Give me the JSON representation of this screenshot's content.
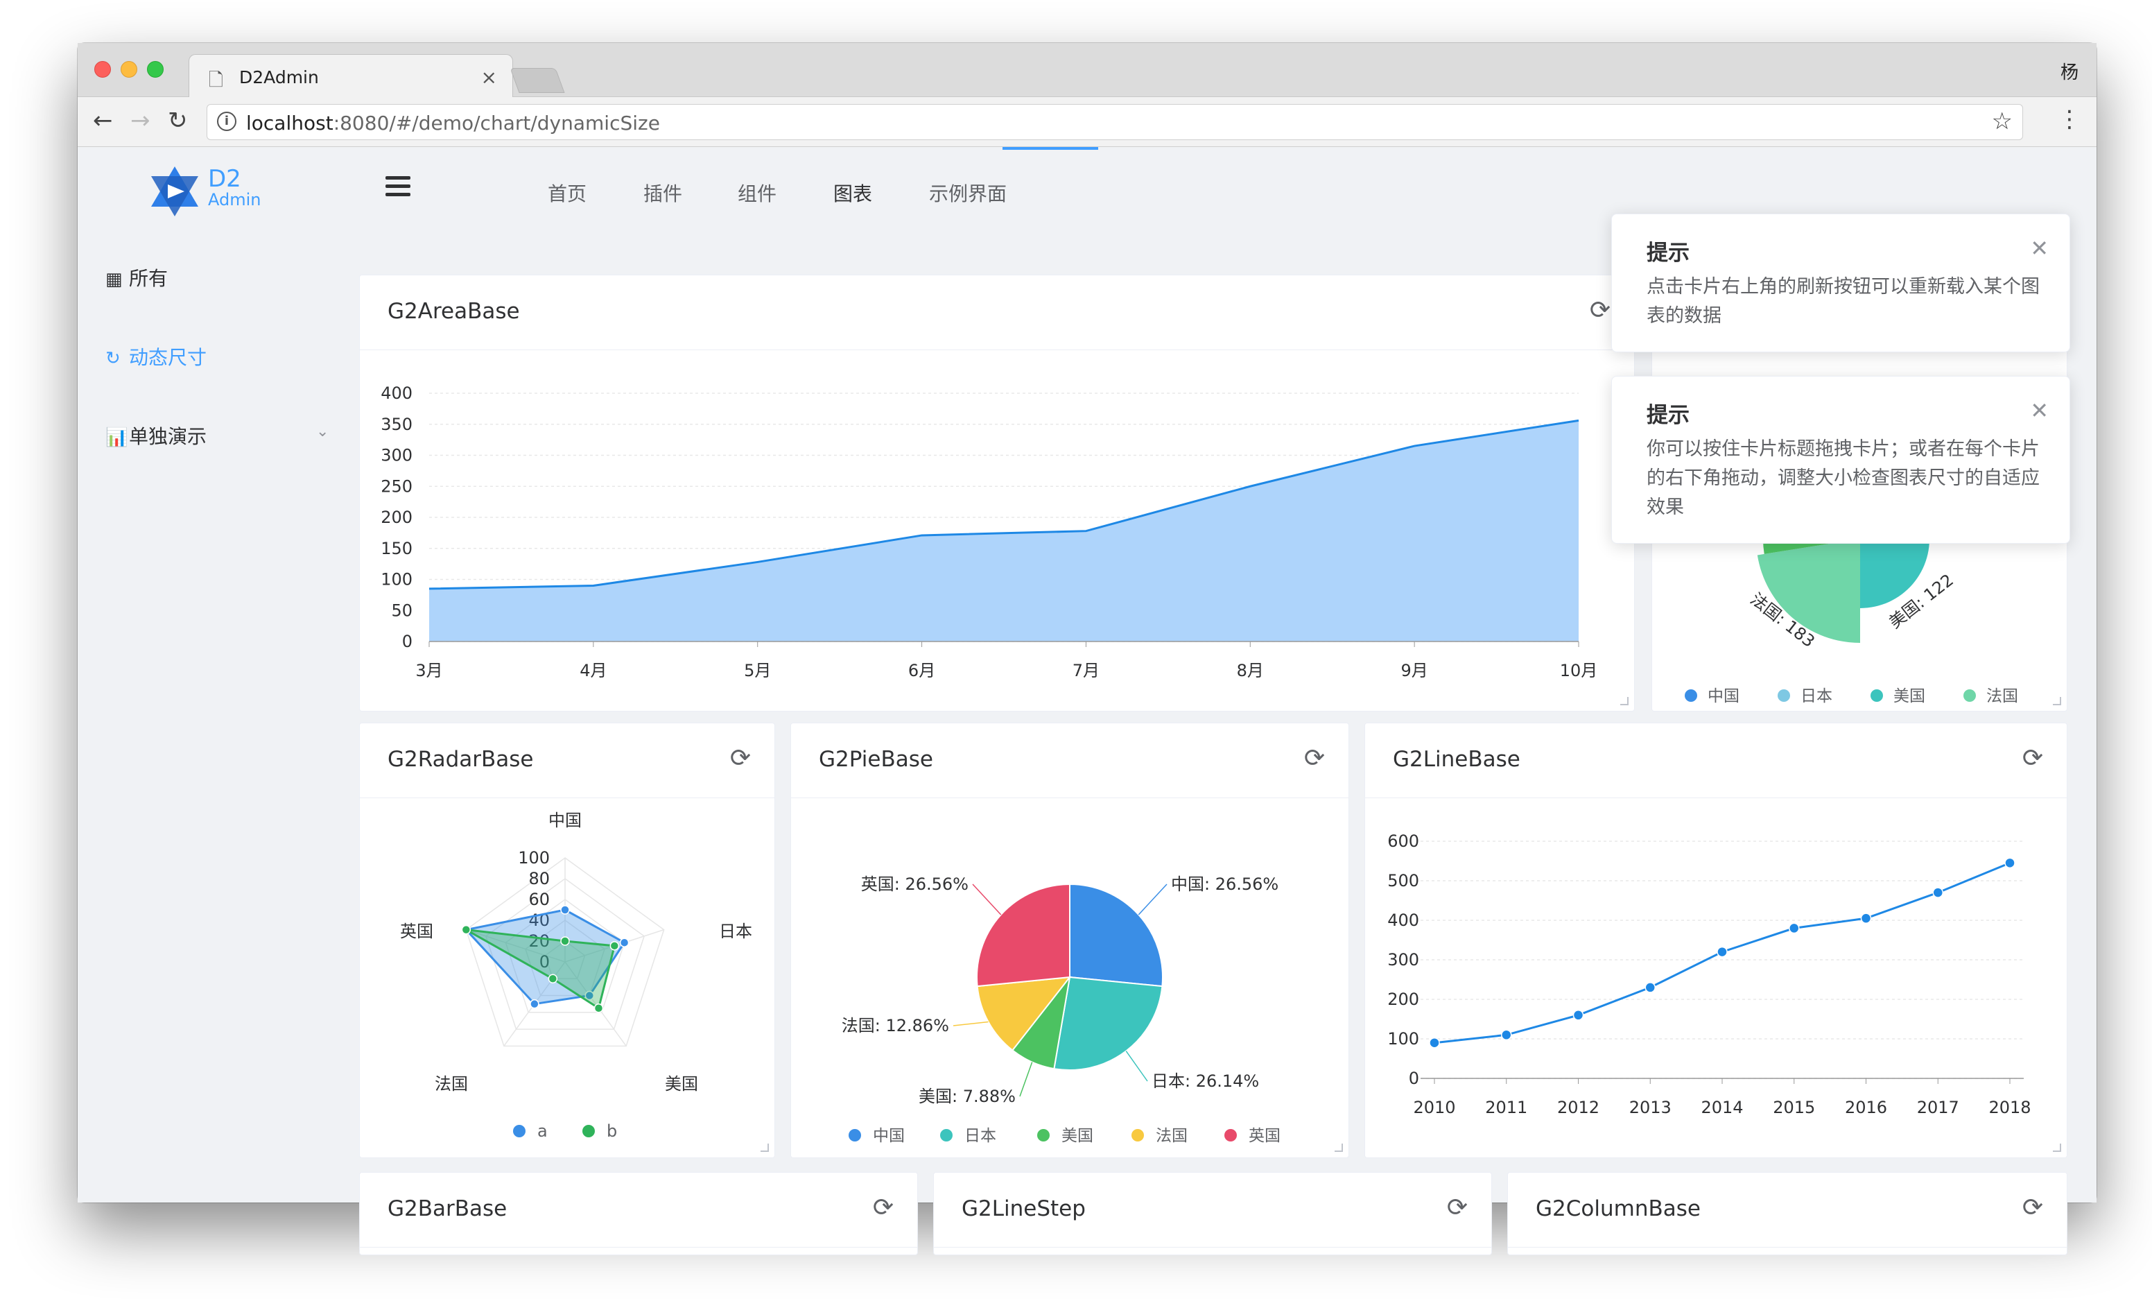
{
  "browser": {
    "tab_title": "D2Admin",
    "profile": "杨",
    "url_host": "localhost",
    "url_path": ":8080/#/demo/chart/dynamicSize"
  },
  "app": {
    "logo_title": "D2",
    "logo_subtitle": "Admin"
  },
  "sidebar": {
    "items": [
      {
        "label": "所有",
        "icon": "grid-icon"
      },
      {
        "label": "动态尺寸",
        "icon": "refresh-icon"
      },
      {
        "label": "单独演示",
        "icon": "bar-chart-icon"
      }
    ]
  },
  "header": {
    "nav": [
      "首页",
      "插件",
      "组件",
      "图表",
      "示例界面"
    ],
    "active": "图表"
  },
  "cards": {
    "area": {
      "title": "G2AreaBase"
    },
    "pie_top": {
      "title": ""
    },
    "radar": {
      "title": "G2RadarBase"
    },
    "pie": {
      "title": "G2PieBase"
    },
    "line": {
      "title": "G2LineBase"
    },
    "bar": {
      "title": "G2BarBase"
    },
    "linestep": {
      "title": "G2LineStep"
    },
    "column": {
      "title": "G2ColumnBase"
    }
  },
  "notifications": [
    {
      "title": "提示",
      "message": "点击卡片右上角的刷新按钮可以重新载入某个图表的数据"
    },
    {
      "title": "提示",
      "message": "你可以按住卡片标题拖拽卡片；或者在每个卡片的右下角拖动，调整大小检查图表尺寸的自适应效果"
    }
  ],
  "colors": {
    "accent": "#409eff",
    "area_fill": "#aed4fb",
    "line": "#1e88e5"
  },
  "chart_data": [
    {
      "type": "area",
      "categories": [
        "3月",
        "4月",
        "5月",
        "6月",
        "7月",
        "8月",
        "9月",
        "10月"
      ],
      "values": [
        85,
        90,
        128,
        171,
        178,
        250,
        315,
        356
      ],
      "yticks": [
        0,
        50,
        100,
        150,
        200,
        250,
        300,
        350,
        400
      ],
      "ylim": [
        0,
        400
      ]
    },
    {
      "type": "pie",
      "partial": true,
      "legend": [
        "中国",
        "日本",
        "美国",
        "法国"
      ],
      "labels": [
        "美国: 122",
        "法国: 183"
      ],
      "colors": [
        "#3a8ee6",
        "#7ec8e3",
        "#3cc4bd",
        "#6fd6a8"
      ]
    },
    {
      "type": "radar",
      "axes": [
        "中国",
        "日本",
        "美国",
        "法国",
        "英国"
      ],
      "ticks": [
        0,
        20,
        40,
        60,
        80,
        100
      ],
      "series": [
        {
          "name": "a",
          "values": [
            50,
            60,
            40,
            50,
            100
          ]
        },
        {
          "name": "b",
          "values": [
            20,
            50,
            55,
            20,
            100
          ]
        }
      ],
      "colors": [
        "#3a8ee6",
        "#2fb35a"
      ]
    },
    {
      "type": "pie",
      "slices": [
        {
          "name": "中国",
          "label": "中国: 26.56%",
          "value": 26.56,
          "color": "#3a8ee6"
        },
        {
          "name": "日本",
          "label": "日本: 26.14%",
          "value": 26.14,
          "color": "#3cc4bd"
        },
        {
          "name": "美国",
          "label": "美国: 7.88%",
          "value": 7.88,
          "color": "#4cc261"
        },
        {
          "name": "法国",
          "label": "法国: 12.86%",
          "value": 12.86,
          "color": "#f8c93f"
        },
        {
          "name": "英国",
          "label": "英国: 26.56%",
          "value": 26.56,
          "color": "#e84a6a"
        }
      ]
    },
    {
      "type": "line",
      "categories": [
        "2010",
        "2011",
        "2012",
        "2013",
        "2014",
        "2015",
        "2016",
        "2017",
        "2018"
      ],
      "values": [
        90,
        110,
        160,
        230,
        320,
        380,
        405,
        470,
        545
      ],
      "yticks": [
        0,
        100,
        200,
        300,
        400,
        500,
        600
      ],
      "ylim": [
        0,
        600
      ]
    }
  ]
}
